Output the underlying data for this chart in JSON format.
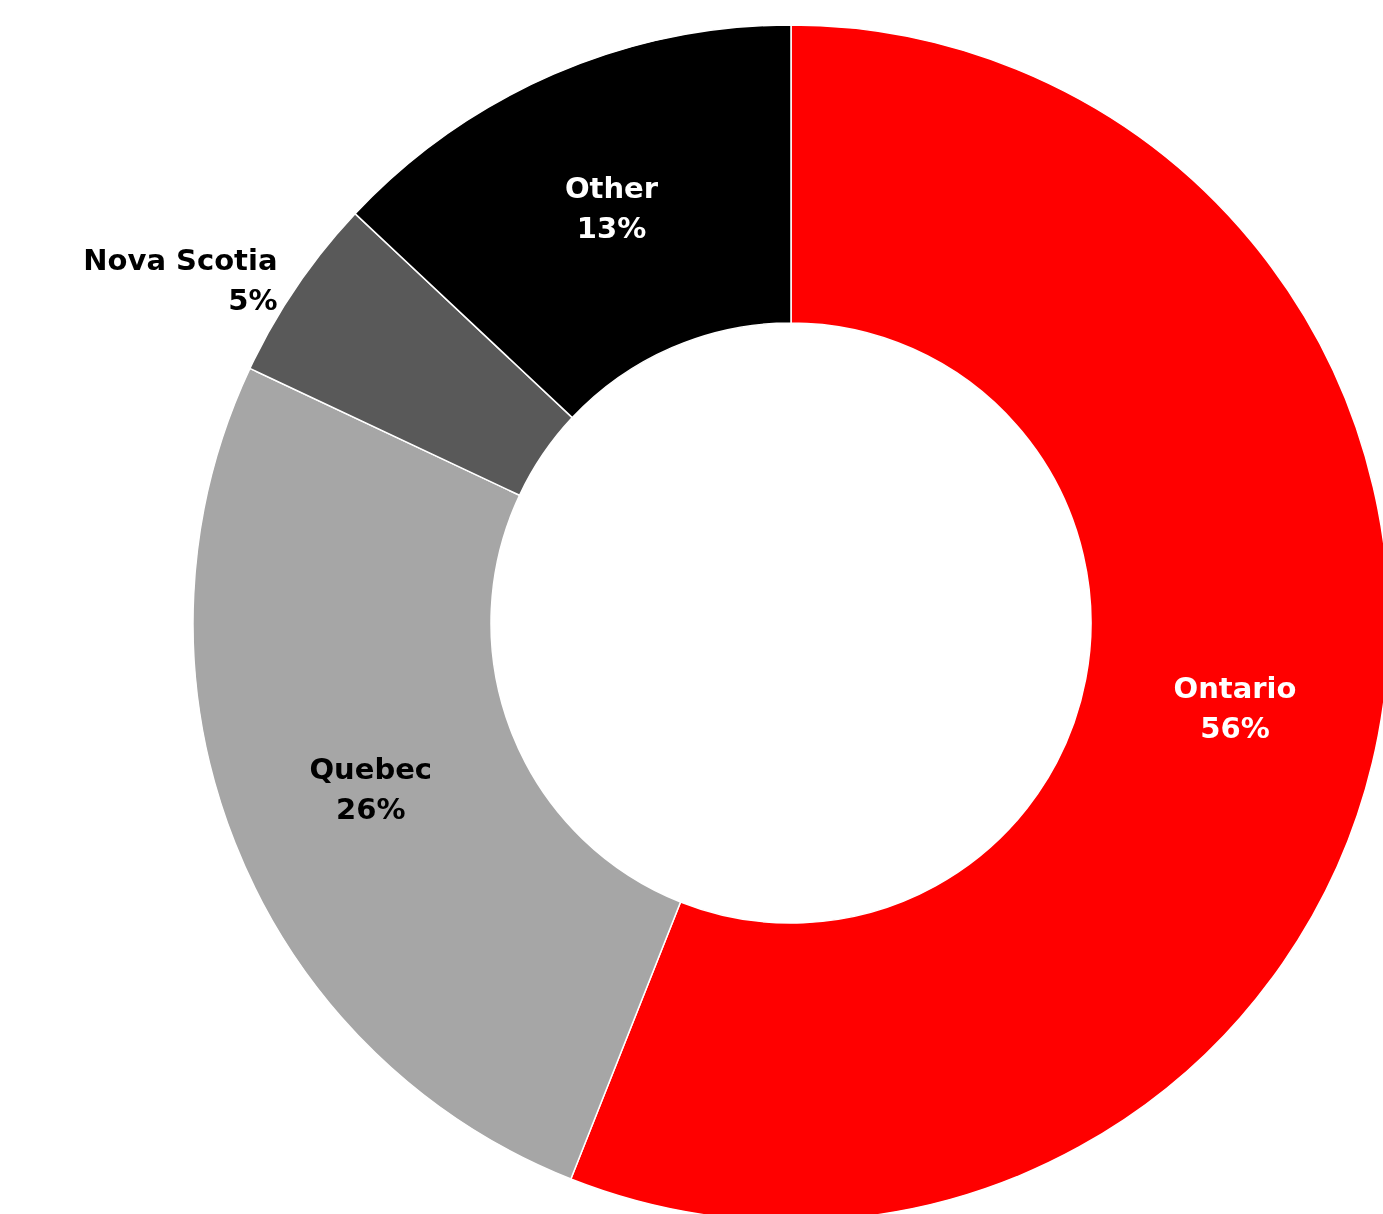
{
  "chart_data": {
    "type": "donut",
    "categories": [
      "Ontario",
      "Quebec",
      "Nova Scotia",
      "Other"
    ],
    "values": [
      56,
      26,
      5,
      13
    ],
    "colors": [
      "#ff0000",
      "#a6a6a6",
      "#595959",
      "#000000"
    ],
    "value_labels": [
      "56%",
      "26%",
      "5%",
      "13%"
    ]
  }
}
